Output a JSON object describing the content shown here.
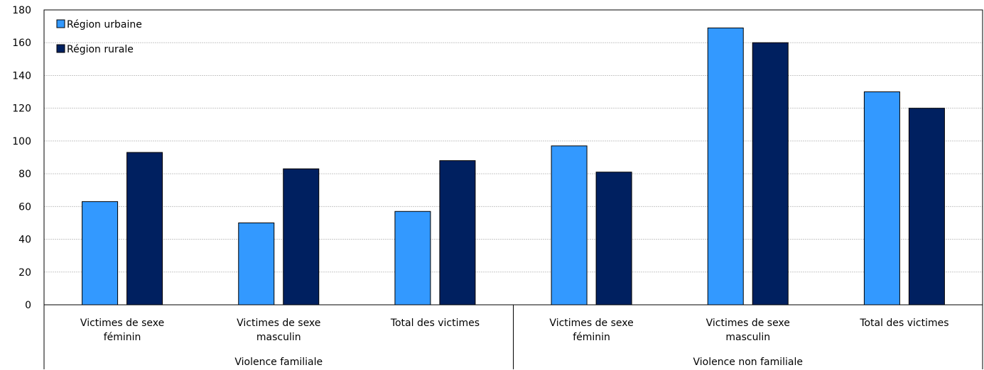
{
  "chart_data": {
    "type": "bar",
    "title": "",
    "xlabel": "",
    "ylabel": "",
    "ylim": [
      0,
      180
    ],
    "yticks": [
      0,
      20,
      40,
      60,
      80,
      100,
      120,
      140,
      160,
      180
    ],
    "grid": true,
    "legend_position": "top-left",
    "categories": [
      [
        "Victimes de sexe",
        "féminin"
      ],
      [
        "Victimes de sexe",
        "masculin"
      ],
      [
        "Total des victimes"
      ],
      [
        "Victimes de sexe",
        "féminin"
      ],
      [
        "Victimes de sexe",
        "masculin"
      ],
      [
        "Total des victimes"
      ]
    ],
    "groups": [
      {
        "label": "Violence familiale",
        "categories": 3
      },
      {
        "label": "Violence non familiale",
        "categories": 3
      }
    ],
    "series": [
      {
        "name": "Région urbaine",
        "color": "#3399ff",
        "values": [
          63,
          50,
          57,
          97,
          169,
          130
        ]
      },
      {
        "name": "Région rurale",
        "color": "#002060",
        "values": [
          93,
          83,
          88,
          81,
          160,
          120
        ]
      }
    ]
  }
}
